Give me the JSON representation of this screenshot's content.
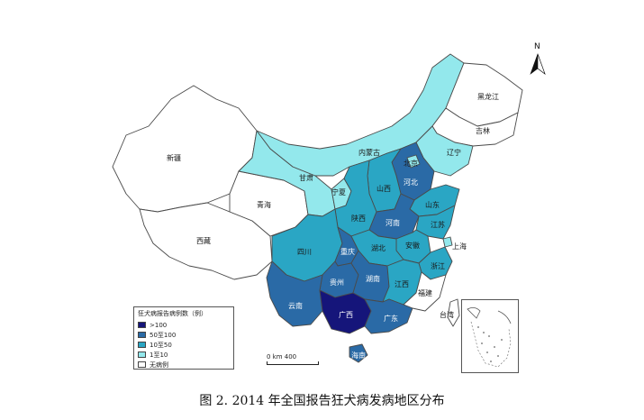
{
  "caption": "图 2. 2014 年全国报告狂犬病发病地区分布",
  "legend": {
    "title": "狂犬病报告病例数（例）",
    "items": [
      {
        "label": ">100",
        "color": "#15157a"
      },
      {
        "label": "50至100",
        "color": "#2a6aa6"
      },
      {
        "label": "10至50",
        "color": "#2aa6c4"
      },
      {
        "label": "1至10",
        "color": "#93e8ec"
      },
      {
        "label": "无病例",
        "color": "#ffffff"
      }
    ]
  },
  "scale": {
    "label": "0   km  400"
  },
  "north": "N",
  "regions": {
    "xinjiang": {
      "label": "新疆",
      "color": "#ffffff"
    },
    "xizang": {
      "label": "西藏",
      "color": "#ffffff"
    },
    "qinghai": {
      "label": "青海",
      "color": "#ffffff"
    },
    "gansu": {
      "label": "甘肃",
      "color": "#93e8ec"
    },
    "neimenggu": {
      "label": "内蒙古",
      "color": "#93e8ec"
    },
    "heilongjiang": {
      "label": "黑龙江",
      "color": "#ffffff"
    },
    "jilin": {
      "label": "吉林",
      "color": "#ffffff"
    },
    "liaoning": {
      "label": "辽宁",
      "color": "#93e8ec"
    },
    "hebei": {
      "label": "河北",
      "color": "#2a6aa6"
    },
    "beijing": {
      "label": "北京",
      "color": "#93e8ec"
    },
    "shanxi": {
      "label": "山西",
      "color": "#2aa6c4"
    },
    "shandong": {
      "label": "山东",
      "color": "#2aa6c4"
    },
    "ningxia": {
      "label": "宁夏",
      "color": "#93e8ec"
    },
    "shaanxi": {
      "label": "陕西",
      "color": "#2aa6c4"
    },
    "henan": {
      "label": "河南",
      "color": "#2a6aa6"
    },
    "jiangsu": {
      "label": "江苏",
      "color": "#2aa6c4"
    },
    "anhui": {
      "label": "安徽",
      "color": "#2aa6c4"
    },
    "shanghai": {
      "label": "上海",
      "color": "#93e8ec"
    },
    "sichuan": {
      "label": "四川",
      "color": "#2aa6c4"
    },
    "chongqing": {
      "label": "重庆",
      "color": "#2a6aa6"
    },
    "hubei": {
      "label": "湖北",
      "color": "#2aa6c4"
    },
    "zhejiang": {
      "label": "浙江",
      "color": "#2aa6c4"
    },
    "guizhou": {
      "label": "贵州",
      "color": "#2a6aa6"
    },
    "hunan": {
      "label": "湖南",
      "color": "#2a6aa6"
    },
    "jiangxi": {
      "label": "江西",
      "color": "#2aa6c4"
    },
    "fujian": {
      "label": "福建",
      "color": "#ffffff"
    },
    "yunnan": {
      "label": "云南",
      "color": "#2a6aa6"
    },
    "guangxi": {
      "label": "广西",
      "color": "#15157a"
    },
    "guangdong": {
      "label": "广东",
      "color": "#2a6aa6"
    },
    "taiwan": {
      "label": "台湾",
      "color": "#ffffff"
    },
    "hainan": {
      "label": "海南",
      "color": "#2a6aa6"
    }
  }
}
